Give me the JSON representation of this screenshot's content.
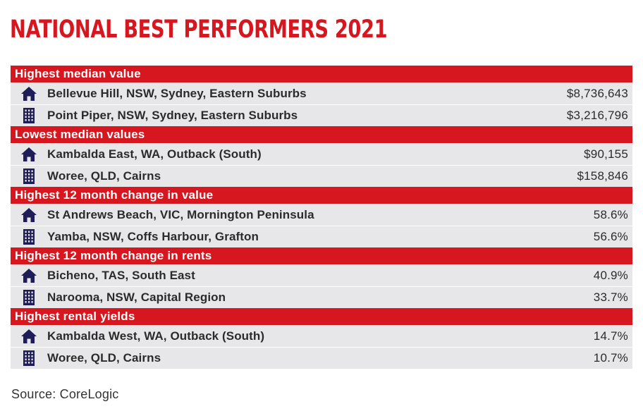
{
  "title": "NATIONAL BEST PERFORMERS 2021",
  "colors": {
    "accent": "#d7171f",
    "icon": "#1f1d57",
    "row_bg": "#e7e7e9"
  },
  "sections": [
    {
      "header": "Highest median value",
      "rows": [
        {
          "icon": "house-icon",
          "place": "Bellevue Hill, NSW, Sydney, Eastern Suburbs",
          "value": "$8,736,643"
        },
        {
          "icon": "apartment-building-icon",
          "place": "Point Piper, NSW, Sydney, Eastern Suburbs",
          "value": "$3,216,796"
        }
      ]
    },
    {
      "header": "Lowest median values",
      "rows": [
        {
          "icon": "house-icon",
          "place": "Kambalda East, WA, Outback (South)",
          "value": "$90,155"
        },
        {
          "icon": "apartment-building-icon",
          "place": "Woree, QLD, Cairns",
          "value": "$158,846"
        }
      ]
    },
    {
      "header": "Highest 12 month change in value",
      "rows": [
        {
          "icon": "house-icon",
          "place": "St Andrews Beach, VIC, Mornington Peninsula",
          "value": "58.6%"
        },
        {
          "icon": "apartment-building-icon",
          "place": "Yamba, NSW, Coffs Harbour, Grafton",
          "value": "56.6%"
        }
      ]
    },
    {
      "header": "Highest 12 month change in rents",
      "rows": [
        {
          "icon": "house-icon",
          "place": "Bicheno, TAS, South East",
          "value": "40.9%"
        },
        {
          "icon": "apartment-building-icon",
          "place": "Narooma, NSW, Capital Region",
          "value": "33.7%"
        }
      ]
    },
    {
      "header": "Highest rental yields",
      "rows": [
        {
          "icon": "house-icon",
          "place": "Kambalda West, WA, Outback (South)",
          "value": "14.7%"
        },
        {
          "icon": "apartment-building-icon",
          "place": "Woree, QLD, Cairns",
          "value": "10.7%"
        }
      ]
    }
  ],
  "source": "Source: CoreLogic"
}
